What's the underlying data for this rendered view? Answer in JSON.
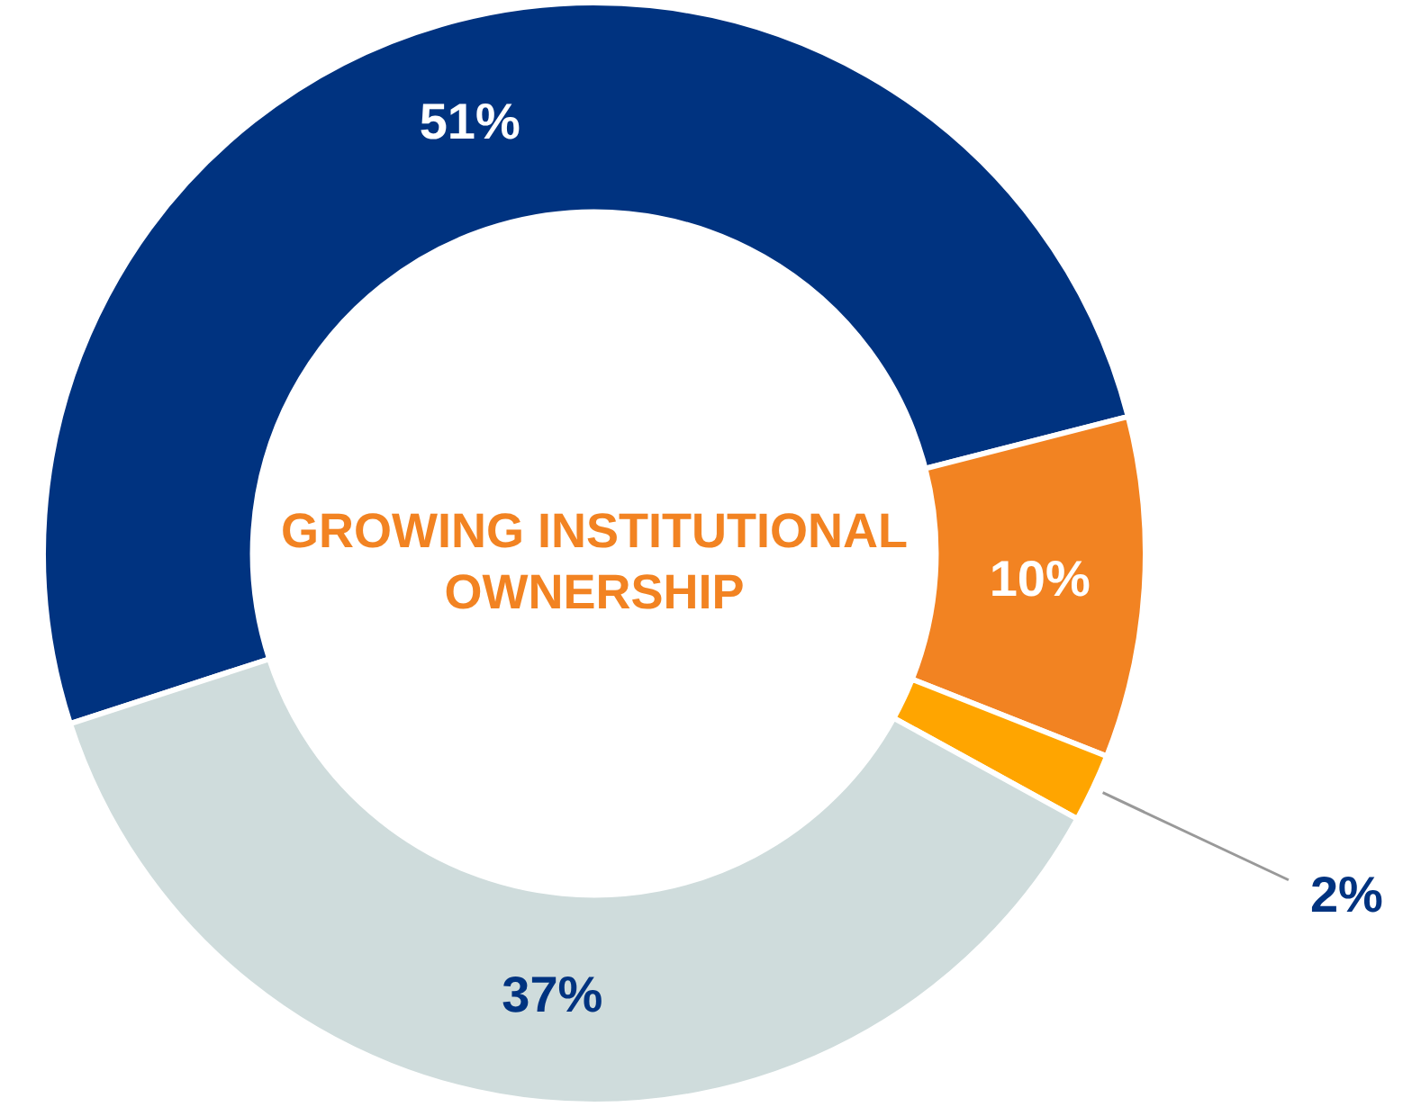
{
  "chart_data": {
    "type": "donut",
    "title": "GROWING INSTITUTIONAL OWNERSHIP",
    "categories": [
      null,
      null,
      null,
      null
    ],
    "values": [
      51,
      10,
      2,
      37
    ],
    "colors": [
      "#003380",
      "#f28322",
      "#ffa500",
      "#cfdcdc"
    ],
    "value_labels": [
      "51%",
      "10%",
      "2%",
      "37%"
    ],
    "legend": false
  }
}
